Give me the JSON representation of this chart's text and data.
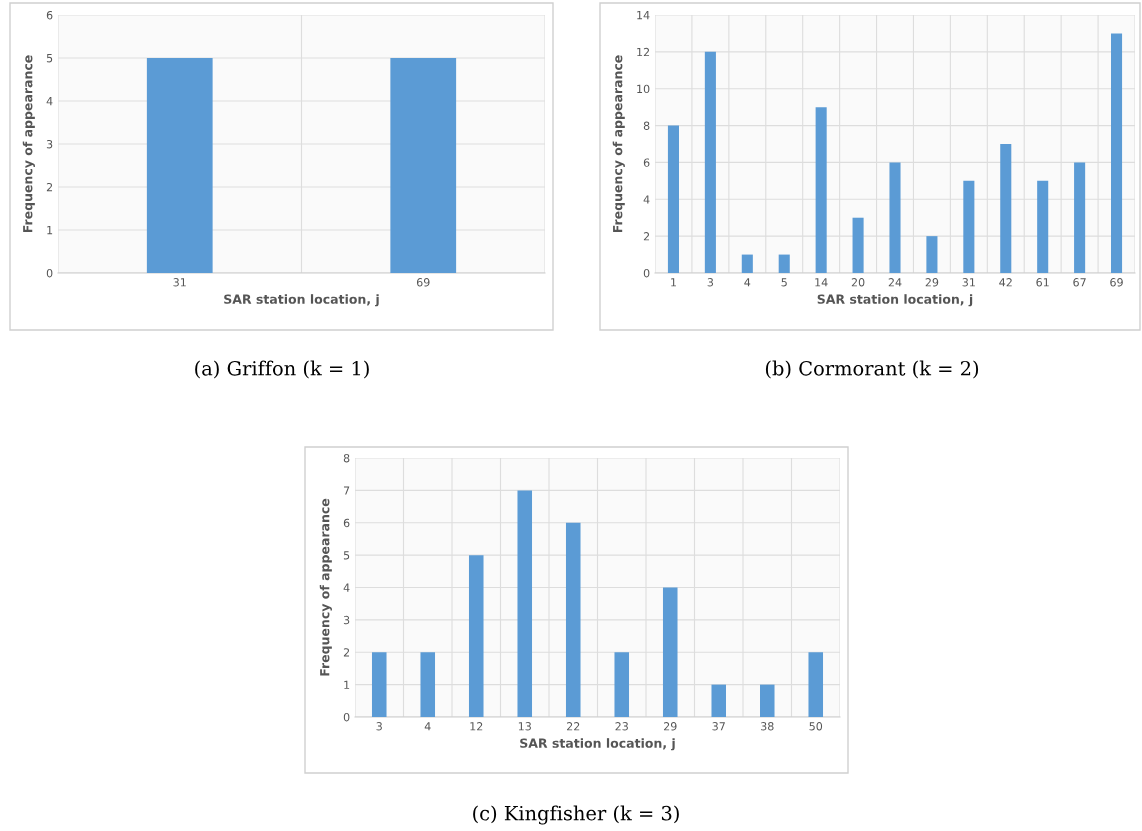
{
  "chart_data": [
    {
      "type": "bar",
      "xlabel": "SAR station location, j",
      "ylabel": "Frequency of appearance",
      "categories": [
        "31",
        "69"
      ],
      "values": [
        5,
        5
      ],
      "color": "#5b9bd5",
      "ylim": [
        0,
        6
      ],
      "yticks": [
        0,
        1,
        2,
        3,
        4,
        5,
        6
      ],
      "grid": true,
      "annotations": [
        "(a) Griffon (k = 1)"
      ]
    },
    {
      "type": "bar",
      "xlabel": "SAR station location, j",
      "ylabel": "Frequency of appearance",
      "categories": [
        "1",
        "3",
        "4",
        "5",
        "14",
        "20",
        "24",
        "29",
        "31",
        "42",
        "61",
        "67",
        "69"
      ],
      "values": [
        8,
        12,
        1,
        1,
        9,
        3,
        6,
        2,
        5,
        7,
        5,
        6,
        13
      ],
      "color": "#5b9bd5",
      "ylim": [
        0,
        14
      ],
      "yticks": [
        0,
        2,
        4,
        6,
        8,
        10,
        12,
        14
      ],
      "grid": true,
      "annotations": [
        "(b) Cormorant (k = 2)"
      ]
    },
    {
      "type": "bar",
      "xlabel": "SAR station location, j",
      "ylabel": "Frequency of appearance",
      "categories": [
        "3",
        "4",
        "12",
        "13",
        "22",
        "23",
        "29",
        "37",
        "38",
        "50"
      ],
      "values": [
        2,
        2,
        5,
        7,
        6,
        2,
        4,
        1,
        1,
        2
      ],
      "color": "#5b9bd5",
      "ylim": [
        0,
        8
      ],
      "yticks": [
        0,
        1,
        2,
        3,
        4,
        5,
        6,
        7,
        8
      ],
      "grid": true,
      "annotations": [
        "(c) Kingfisher (k = 3)"
      ]
    }
  ]
}
